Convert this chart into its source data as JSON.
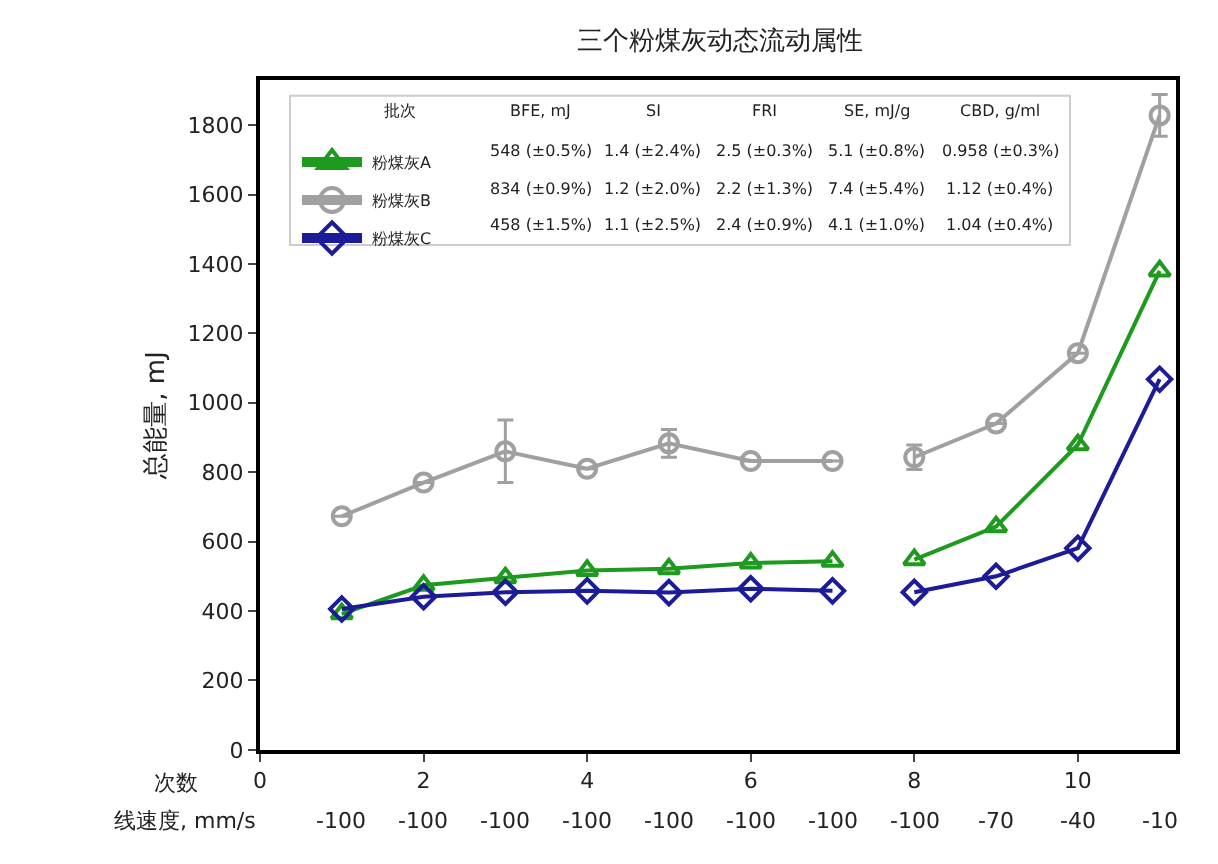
{
  "chart_data": {
    "type": "line",
    "title": "三个粉煤灰动态流动属性",
    "xlabel": "次数",
    "ylabel": "总能量, mJ",
    "x": [
      1,
      2,
      3,
      4,
      5,
      6,
      7,
      7.5,
      8,
      9,
      10,
      11
    ],
    "xlim": [
      0,
      11.2
    ],
    "xticks": [
      0,
      2,
      4,
      6,
      8,
      10
    ],
    "ylim": [
      0,
      1930
    ],
    "yticks": [
      0,
      200,
      400,
      600,
      800,
      1000,
      1200,
      1400,
      1600,
      1800
    ],
    "series": [
      {
        "name": "粉煤灰A",
        "color": "#1e9a1e",
        "marker": "triangle",
        "values": [
          392,
          474,
          496,
          517,
          522,
          538,
          543,
          null,
          548,
          643,
          879,
          1380
        ]
      },
      {
        "name": "粉煤灰B",
        "color": "#a0a0a0",
        "marker": "circle",
        "values": [
          673,
          770,
          860,
          810,
          883,
          832,
          832,
          null,
          843,
          940,
          1143,
          1828
        ],
        "errors": [
          null,
          null,
          90,
          null,
          40,
          null,
          null,
          null,
          35,
          null,
          null,
          60
        ]
      },
      {
        "name": "粉煤灰C",
        "color": "#1c1c99",
        "marker": "diamond",
        "values": [
          406,
          441,
          454,
          458,
          453,
          464,
          458,
          null,
          454,
          500,
          581,
          1068
        ]
      }
    ],
    "annotations": [
      "线速度, mm/s",
      "-100",
      "-100",
      "-100",
      "-100",
      "-100",
      "-100",
      "-100",
      "-100",
      "-70",
      "-40",
      "-10",
      "批次",
      "BFE, mJ",
      "SI",
      "FRI",
      "SE, mJ/g",
      "CBD, g/ml",
      "548 (±0.5%)",
      "1.4 (±2.4%)",
      "2.5 (±0.3%)",
      "5.1 (±0.8%)",
      "0.958 (±0.3%)",
      "834 (±0.9%)",
      "1.2 (±2.0%)",
      "2.2 (±1.3%)",
      "7.4 (±5.4%)",
      "1.12 (±0.4%)",
      "458 (±1.5%)",
      "1.1 (±2.5%)",
      "2.4 (±0.9%)",
      "4.1 (±1.0%)",
      "1.04 (±0.4%)"
    ],
    "legend": "top left",
    "line_style": "solid"
  }
}
